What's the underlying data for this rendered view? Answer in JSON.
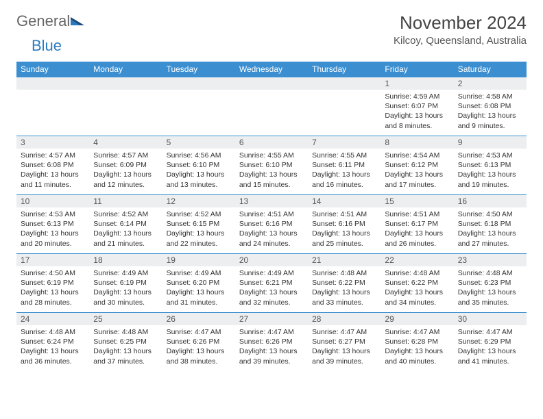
{
  "logo": {
    "text1": "General",
    "text2": "Blue"
  },
  "title": "November 2024",
  "location": "Kilcoy, Queensland, Australia",
  "colors": {
    "header_bg": "#3b8fd0",
    "header_text": "#ffffff",
    "daynum_bg": "#eceef0",
    "border": "#3b8fd0",
    "page_bg": "#ffffff",
    "body_text": "#333333",
    "logo_blue": "#2b7bbf",
    "logo_gray": "#666666"
  },
  "columns": [
    "Sunday",
    "Monday",
    "Tuesday",
    "Wednesday",
    "Thursday",
    "Friday",
    "Saturday"
  ],
  "weeks": [
    [
      null,
      null,
      null,
      null,
      null,
      {
        "n": "1",
        "sr": "Sunrise: 4:59 AM",
        "ss": "Sunset: 6:07 PM",
        "d1": "Daylight: 13 hours",
        "d2": "and 8 minutes."
      },
      {
        "n": "2",
        "sr": "Sunrise: 4:58 AM",
        "ss": "Sunset: 6:08 PM",
        "d1": "Daylight: 13 hours",
        "d2": "and 9 minutes."
      }
    ],
    [
      {
        "n": "3",
        "sr": "Sunrise: 4:57 AM",
        "ss": "Sunset: 6:08 PM",
        "d1": "Daylight: 13 hours",
        "d2": "and 11 minutes."
      },
      {
        "n": "4",
        "sr": "Sunrise: 4:57 AM",
        "ss": "Sunset: 6:09 PM",
        "d1": "Daylight: 13 hours",
        "d2": "and 12 minutes."
      },
      {
        "n": "5",
        "sr": "Sunrise: 4:56 AM",
        "ss": "Sunset: 6:10 PM",
        "d1": "Daylight: 13 hours",
        "d2": "and 13 minutes."
      },
      {
        "n": "6",
        "sr": "Sunrise: 4:55 AM",
        "ss": "Sunset: 6:10 PM",
        "d1": "Daylight: 13 hours",
        "d2": "and 15 minutes."
      },
      {
        "n": "7",
        "sr": "Sunrise: 4:55 AM",
        "ss": "Sunset: 6:11 PM",
        "d1": "Daylight: 13 hours",
        "d2": "and 16 minutes."
      },
      {
        "n": "8",
        "sr": "Sunrise: 4:54 AM",
        "ss": "Sunset: 6:12 PM",
        "d1": "Daylight: 13 hours",
        "d2": "and 17 minutes."
      },
      {
        "n": "9",
        "sr": "Sunrise: 4:53 AM",
        "ss": "Sunset: 6:13 PM",
        "d1": "Daylight: 13 hours",
        "d2": "and 19 minutes."
      }
    ],
    [
      {
        "n": "10",
        "sr": "Sunrise: 4:53 AM",
        "ss": "Sunset: 6:13 PM",
        "d1": "Daylight: 13 hours",
        "d2": "and 20 minutes."
      },
      {
        "n": "11",
        "sr": "Sunrise: 4:52 AM",
        "ss": "Sunset: 6:14 PM",
        "d1": "Daylight: 13 hours",
        "d2": "and 21 minutes."
      },
      {
        "n": "12",
        "sr": "Sunrise: 4:52 AM",
        "ss": "Sunset: 6:15 PM",
        "d1": "Daylight: 13 hours",
        "d2": "and 22 minutes."
      },
      {
        "n": "13",
        "sr": "Sunrise: 4:51 AM",
        "ss": "Sunset: 6:16 PM",
        "d1": "Daylight: 13 hours",
        "d2": "and 24 minutes."
      },
      {
        "n": "14",
        "sr": "Sunrise: 4:51 AM",
        "ss": "Sunset: 6:16 PM",
        "d1": "Daylight: 13 hours",
        "d2": "and 25 minutes."
      },
      {
        "n": "15",
        "sr": "Sunrise: 4:51 AM",
        "ss": "Sunset: 6:17 PM",
        "d1": "Daylight: 13 hours",
        "d2": "and 26 minutes."
      },
      {
        "n": "16",
        "sr": "Sunrise: 4:50 AM",
        "ss": "Sunset: 6:18 PM",
        "d1": "Daylight: 13 hours",
        "d2": "and 27 minutes."
      }
    ],
    [
      {
        "n": "17",
        "sr": "Sunrise: 4:50 AM",
        "ss": "Sunset: 6:19 PM",
        "d1": "Daylight: 13 hours",
        "d2": "and 28 minutes."
      },
      {
        "n": "18",
        "sr": "Sunrise: 4:49 AM",
        "ss": "Sunset: 6:19 PM",
        "d1": "Daylight: 13 hours",
        "d2": "and 30 minutes."
      },
      {
        "n": "19",
        "sr": "Sunrise: 4:49 AM",
        "ss": "Sunset: 6:20 PM",
        "d1": "Daylight: 13 hours",
        "d2": "and 31 minutes."
      },
      {
        "n": "20",
        "sr": "Sunrise: 4:49 AM",
        "ss": "Sunset: 6:21 PM",
        "d1": "Daylight: 13 hours",
        "d2": "and 32 minutes."
      },
      {
        "n": "21",
        "sr": "Sunrise: 4:48 AM",
        "ss": "Sunset: 6:22 PM",
        "d1": "Daylight: 13 hours",
        "d2": "and 33 minutes."
      },
      {
        "n": "22",
        "sr": "Sunrise: 4:48 AM",
        "ss": "Sunset: 6:22 PM",
        "d1": "Daylight: 13 hours",
        "d2": "and 34 minutes."
      },
      {
        "n": "23",
        "sr": "Sunrise: 4:48 AM",
        "ss": "Sunset: 6:23 PM",
        "d1": "Daylight: 13 hours",
        "d2": "and 35 minutes."
      }
    ],
    [
      {
        "n": "24",
        "sr": "Sunrise: 4:48 AM",
        "ss": "Sunset: 6:24 PM",
        "d1": "Daylight: 13 hours",
        "d2": "and 36 minutes."
      },
      {
        "n": "25",
        "sr": "Sunrise: 4:48 AM",
        "ss": "Sunset: 6:25 PM",
        "d1": "Daylight: 13 hours",
        "d2": "and 37 minutes."
      },
      {
        "n": "26",
        "sr": "Sunrise: 4:47 AM",
        "ss": "Sunset: 6:26 PM",
        "d1": "Daylight: 13 hours",
        "d2": "and 38 minutes."
      },
      {
        "n": "27",
        "sr": "Sunrise: 4:47 AM",
        "ss": "Sunset: 6:26 PM",
        "d1": "Daylight: 13 hours",
        "d2": "and 39 minutes."
      },
      {
        "n": "28",
        "sr": "Sunrise: 4:47 AM",
        "ss": "Sunset: 6:27 PM",
        "d1": "Daylight: 13 hours",
        "d2": "and 39 minutes."
      },
      {
        "n": "29",
        "sr": "Sunrise: 4:47 AM",
        "ss": "Sunset: 6:28 PM",
        "d1": "Daylight: 13 hours",
        "d2": "and 40 minutes."
      },
      {
        "n": "30",
        "sr": "Sunrise: 4:47 AM",
        "ss": "Sunset: 6:29 PM",
        "d1": "Daylight: 13 hours",
        "d2": "and 41 minutes."
      }
    ]
  ]
}
